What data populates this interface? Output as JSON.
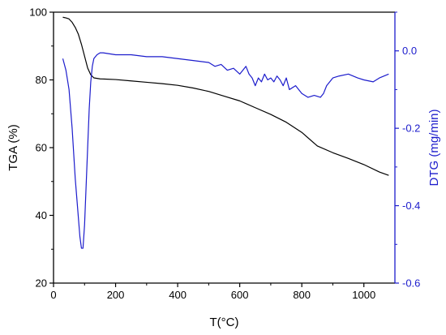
{
  "chart_data": {
    "type": "line",
    "title": "",
    "xlabel": "T(°C)",
    "ylabel_left": "TGA (%)",
    "ylabel_right": "DTG (mg/min)",
    "xlim": [
      0,
      1100
    ],
    "ylim_left": [
      20,
      100
    ],
    "ylim_right": [
      -0.6,
      0.1
    ],
    "grid": false,
    "legend": "none",
    "x_ticks": [
      0,
      200,
      400,
      600,
      800,
      1000
    ],
    "y_left_ticks": [
      20,
      40,
      60,
      80,
      100
    ],
    "y_right_ticks": [
      -0.6,
      -0.4,
      -0.2,
      0.0
    ],
    "x_tick_labels": [
      "0",
      "200",
      "400",
      "600",
      "800",
      "1000"
    ],
    "y_left_tick_labels": [
      "20",
      "40",
      "60",
      "80",
      "100"
    ],
    "y_right_tick_labels": [
      "-0.6",
      "-0.4",
      "-0.2",
      "0.0"
    ],
    "colors": {
      "tga": "#000000",
      "dtg": "#1c1ccc",
      "left_axis": "#000000",
      "right_axis": "#1c1ccc"
    },
    "series": [
      {
        "axis": "left",
        "x": [
          30,
          40,
          50,
          60,
          70,
          80,
          90,
          100,
          110,
          120,
          130,
          150,
          200,
          250,
          300,
          350,
          400,
          450,
          500,
          550,
          600,
          650,
          700,
          750,
          800,
          850,
          900,
          950,
          1000,
          1050,
          1080
        ],
        "values": [
          98.5,
          98.3,
          98.0,
          97.0,
          95.5,
          93.5,
          90.5,
          87.0,
          83.5,
          81.5,
          80.6,
          80.3,
          80.1,
          79.7,
          79.3,
          78.9,
          78.4,
          77.6,
          76.6,
          75.2,
          73.8,
          71.8,
          69.8,
          67.5,
          64.5,
          60.5,
          58.5,
          56.8,
          55.0,
          52.8,
          51.8
        ]
      },
      {
        "axis": "right",
        "x": [
          30,
          40,
          50,
          60,
          70,
          80,
          85,
          90,
          95,
          100,
          105,
          110,
          115,
          120,
          125,
          130,
          140,
          150,
          160,
          200,
          250,
          300,
          350,
          400,
          450,
          500,
          520,
          540,
          560,
          580,
          600,
          610,
          620,
          630,
          640,
          650,
          660,
          670,
          680,
          690,
          700,
          710,
          720,
          730,
          740,
          750,
          760,
          780,
          800,
          820,
          840,
          860,
          870,
          880,
          900,
          920,
          950,
          980,
          1000,
          1030,
          1050,
          1080
        ],
        "values": [
          -0.02,
          -0.05,
          -0.1,
          -0.2,
          -0.33,
          -0.43,
          -0.48,
          -0.51,
          -0.51,
          -0.45,
          -0.35,
          -0.25,
          -0.15,
          -0.08,
          -0.04,
          -0.02,
          -0.01,
          -0.005,
          -0.005,
          -0.01,
          -0.01,
          -0.015,
          -0.015,
          -0.02,
          -0.025,
          -0.03,
          -0.04,
          -0.035,
          -0.05,
          -0.045,
          -0.06,
          -0.05,
          -0.04,
          -0.06,
          -0.07,
          -0.09,
          -0.07,
          -0.08,
          -0.06,
          -0.075,
          -0.07,
          -0.08,
          -0.065,
          -0.075,
          -0.09,
          -0.07,
          -0.1,
          -0.09,
          -0.11,
          -0.12,
          -0.115,
          -0.12,
          -0.11,
          -0.09,
          -0.07,
          -0.065,
          -0.06,
          -0.07,
          -0.075,
          -0.08,
          -0.07,
          -0.06
        ]
      }
    ]
  }
}
